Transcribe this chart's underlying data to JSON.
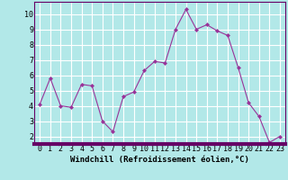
{
  "x": [
    0,
    1,
    2,
    3,
    4,
    5,
    6,
    7,
    8,
    9,
    10,
    11,
    12,
    13,
    14,
    15,
    16,
    17,
    18,
    19,
    20,
    21,
    22,
    23
  ],
  "y": [
    4.1,
    5.8,
    4.0,
    3.9,
    5.4,
    5.3,
    3.0,
    2.3,
    4.6,
    4.9,
    6.3,
    6.9,
    6.8,
    9.0,
    10.3,
    9.0,
    9.3,
    8.9,
    8.6,
    6.5,
    4.2,
    3.3,
    1.6,
    2.0
  ],
  "line_color": "#993399",
  "marker_color": "#993399",
  "bg_color": "#b2e8e8",
  "grid_color": "#ffffff",
  "xlabel": "Windchill (Refroidissement éolien,°C)",
  "xlim": [
    -0.5,
    23.5
  ],
  "ylim": [
    1.5,
    10.8
  ],
  "yticks": [
    2,
    3,
    4,
    5,
    6,
    7,
    8,
    9,
    10
  ],
  "xticks": [
    0,
    1,
    2,
    3,
    4,
    5,
    6,
    7,
    8,
    9,
    10,
    11,
    12,
    13,
    14,
    15,
    16,
    17,
    18,
    19,
    20,
    21,
    22,
    23
  ],
  "xlabel_fontsize": 6.5,
  "tick_fontsize": 6,
  "spine_color": "#660066",
  "axes_bg_color": "#b2e8e8",
  "bottom_bar_color": "#660066"
}
